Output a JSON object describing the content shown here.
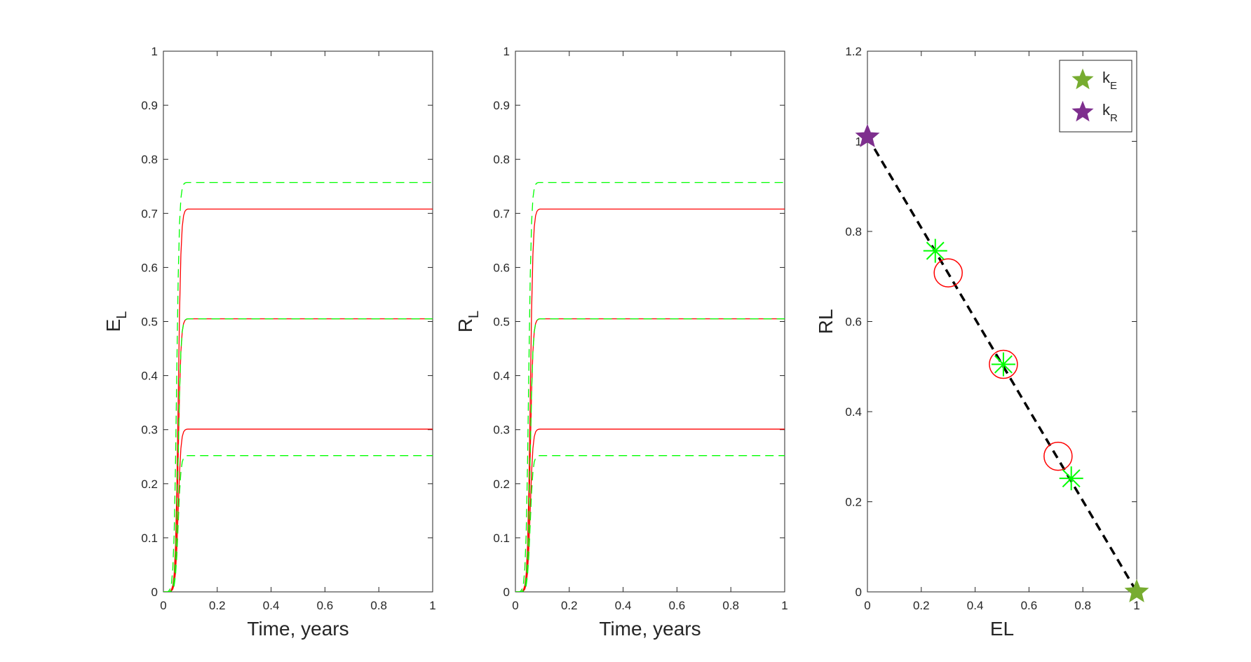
{
  "chart_data": [
    {
      "type": "line",
      "ylabel_main": "E",
      "ylabel_sub": "L",
      "xlabel": "Time, years",
      "xlim": [
        0,
        1
      ],
      "ylim": [
        0,
        1
      ],
      "xticks": [
        "0",
        "0.2",
        "0.4",
        "0.6",
        "0.8",
        "1"
      ],
      "yticks": [
        "0",
        "0.1",
        "0.2",
        "0.3",
        "0.4",
        "0.5",
        "0.6",
        "0.7",
        "0.8",
        "0.9",
        "1"
      ],
      "grid": false,
      "series": [
        {
          "style": "solid",
          "color": "#ff0000",
          "plateau": 0.708
        },
        {
          "style": "solid",
          "color": "#ff0000",
          "plateau": 0.505
        },
        {
          "style": "solid",
          "color": "#ff0000",
          "plateau": 0.301
        },
        {
          "style": "dashed",
          "color": "#00ff00",
          "plateau": 0.757
        },
        {
          "style": "dashed",
          "color": "#00ff00",
          "plateau": 0.505
        },
        {
          "style": "dashed",
          "color": "#00ff00",
          "plateau": 0.252
        }
      ],
      "rise_start": 0.02,
      "rise_end": 0.09
    },
    {
      "type": "line",
      "ylabel_main": "R",
      "ylabel_sub": "L",
      "xlabel": "Time, years",
      "xlim": [
        0,
        1
      ],
      "ylim": [
        0,
        1
      ],
      "xticks": [
        "0",
        "0.2",
        "0.4",
        "0.6",
        "0.8",
        "1"
      ],
      "yticks": [
        "0",
        "0.1",
        "0.2",
        "0.3",
        "0.4",
        "0.5",
        "0.6",
        "0.7",
        "0.8",
        "0.9",
        "1"
      ],
      "grid": false,
      "series": [
        {
          "style": "solid",
          "color": "#ff0000",
          "plateau": 0.708
        },
        {
          "style": "solid",
          "color": "#ff0000",
          "plateau": 0.505
        },
        {
          "style": "solid",
          "color": "#ff0000",
          "plateau": 0.301
        },
        {
          "style": "dashed",
          "color": "#00ff00",
          "plateau": 0.757
        },
        {
          "style": "dashed",
          "color": "#00ff00",
          "plateau": 0.505
        },
        {
          "style": "dashed",
          "color": "#00ff00",
          "plateau": 0.252
        }
      ],
      "rise_start": 0.02,
      "rise_end": 0.09
    },
    {
      "type": "scatter",
      "xlabel": "EL",
      "ylabel": "RL",
      "xlim": [
        0,
        1
      ],
      "ylim": [
        0,
        1.2
      ],
      "xticks": [
        "0",
        "0.2",
        "0.4",
        "0.6",
        "0.8",
        "1"
      ],
      "yticks": [
        "0",
        "0.2",
        "0.4",
        "0.6",
        "0.8",
        "1",
        "1.2"
      ],
      "grid": false,
      "dashed_line": {
        "color": "#000000",
        "points": [
          [
            0,
            1.01
          ],
          [
            1,
            0
          ]
        ]
      },
      "circles": {
        "color": "#ff0000",
        "points": [
          [
            0.3,
            0.708
          ],
          [
            0.505,
            0.505
          ],
          [
            0.708,
            0.301
          ]
        ]
      },
      "asterisks": {
        "color": "#00ff00",
        "points": [
          [
            0.252,
            0.757
          ],
          [
            0.505,
            0.505
          ],
          [
            0.757,
            0.252
          ]
        ]
      },
      "stars": [
        {
          "name": "k_E",
          "label_main": "k",
          "label_sub": "E",
          "color": "#77ac30",
          "x": 1.0,
          "y": 0.0
        },
        {
          "name": "k_R",
          "label_main": "k",
          "label_sub": "R",
          "color": "#7e2f8e",
          "x": 0.0,
          "y": 1.01
        }
      ],
      "legend_position": "top-right"
    }
  ]
}
